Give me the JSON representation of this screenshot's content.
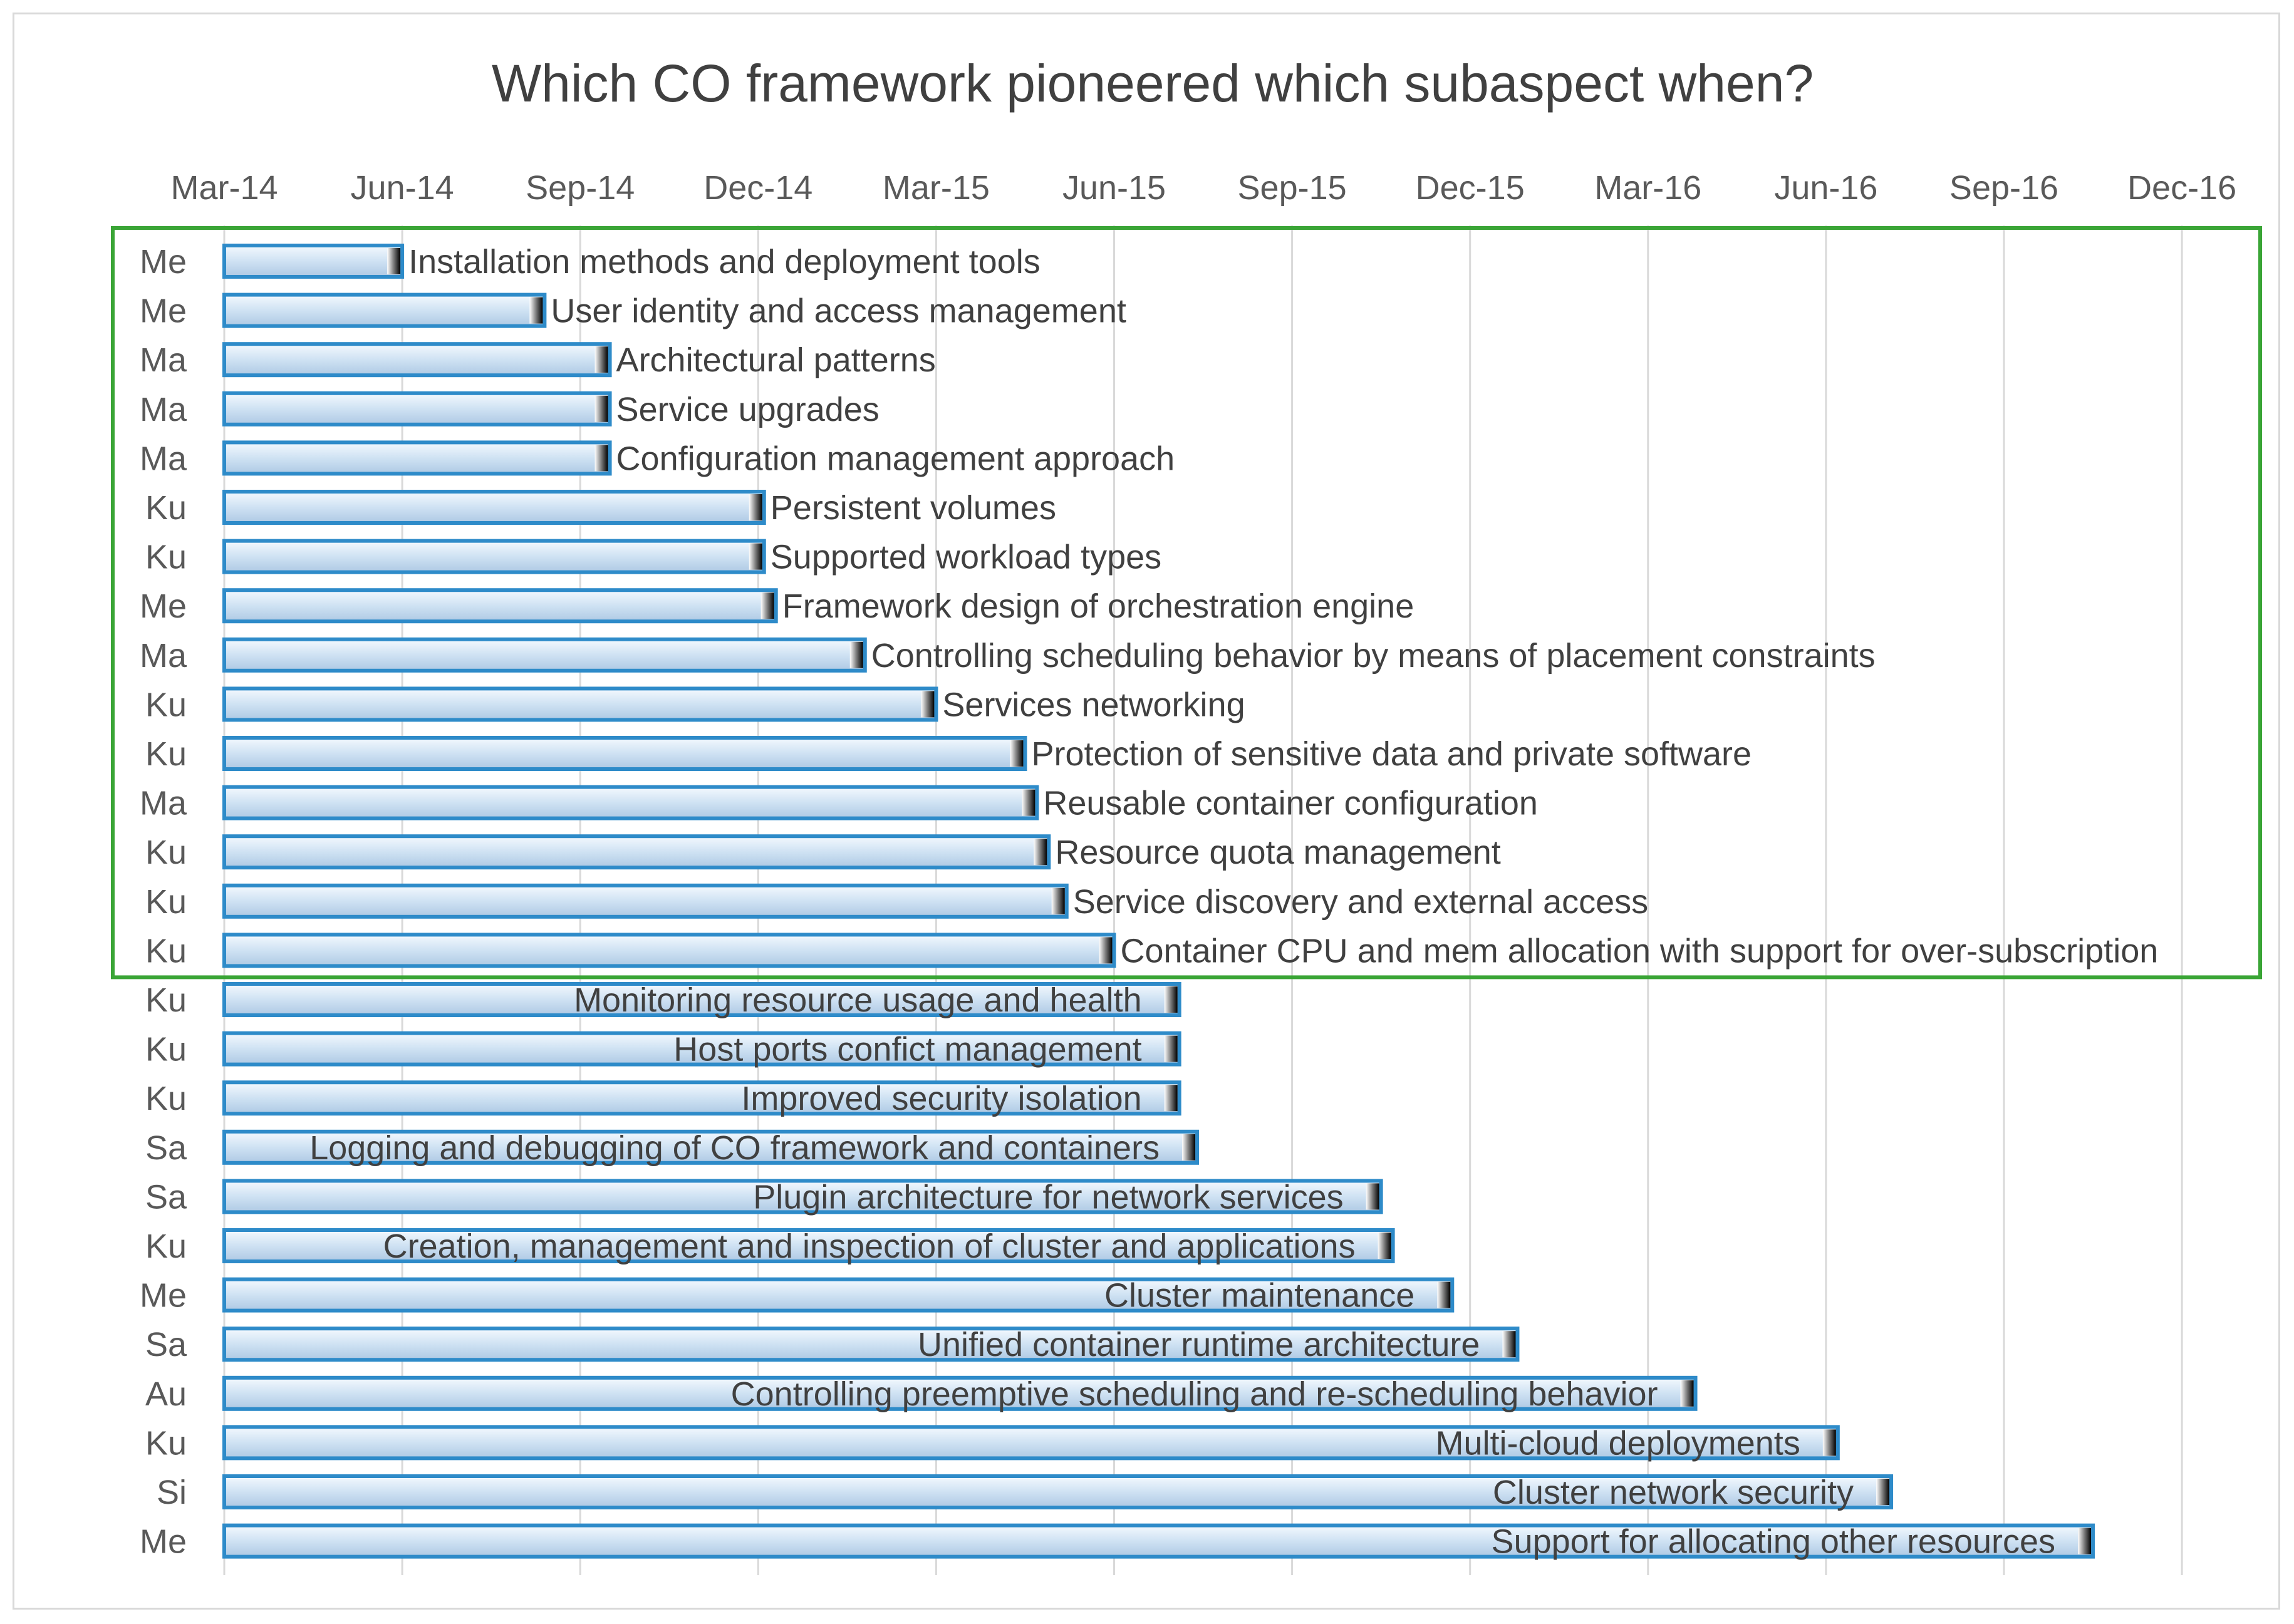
{
  "chart_data": {
    "type": "bar",
    "orientation": "horizontal",
    "title": "Which CO framework pioneered which subaspect when?",
    "x_axis": {
      "position": "top",
      "tick_labels": [
        "Mar-14",
        "Jun-14",
        "Sep-14",
        "Dec-14",
        "Mar-15",
        "Jun-15",
        "Sep-15",
        "Dec-15",
        "Mar-16",
        "Jun-16",
        "Sep-16",
        "Dec-16"
      ],
      "range_months": [
        0,
        33
      ],
      "grid": true
    },
    "highlight_box": {
      "from_row": 0,
      "to_row": 14,
      "color": "#3aa536"
    },
    "bar_color": "#cfe2f3",
    "bar_border_color": "#2e8bc9",
    "bars": [
      {
        "framework": "Me",
        "label": "Installation methods and deployment tools",
        "months": 3.0
      },
      {
        "framework": "Me",
        "label": "User identity and access management",
        "months": 5.4
      },
      {
        "framework": "Ma",
        "label": "Architectural patterns",
        "months": 6.5
      },
      {
        "framework": "Ma",
        "label": "Service upgrades",
        "months": 6.5
      },
      {
        "framework": "Ma",
        "label": "Configuration management approach",
        "months": 6.5
      },
      {
        "framework": "Ku",
        "label": "Persistent volumes",
        "months": 9.1
      },
      {
        "framework": "Ku",
        "label": "Supported workload types",
        "months": 9.1
      },
      {
        "framework": "Me",
        "label": "Framework design of orchestration engine",
        "months": 9.3
      },
      {
        "framework": "Ma",
        "label": "Controlling scheduling behavior by means of  placement constraints",
        "months": 10.8
      },
      {
        "framework": "Ku",
        "label": "Services networking",
        "months": 12.0
      },
      {
        "framework": "Ku",
        "label": "Protection of sensitive data and private software",
        "months": 13.5
      },
      {
        "framework": "Ma",
        "label": "Reusable container configuration",
        "months": 13.7
      },
      {
        "framework": "Ku",
        "label": "Resource quota management",
        "months": 13.9
      },
      {
        "framework": "Ku",
        "label": "Service discovery and external access",
        "months": 14.2
      },
      {
        "framework": "Ku",
        "label": "Container CPU and mem allocation with support for over-subscription",
        "months": 15.0
      },
      {
        "framework": "Ku",
        "label": "Monitoring resource usage and health",
        "months": 16.1
      },
      {
        "framework": "Ku",
        "label": "Host ports confict management",
        "months": 16.1
      },
      {
        "framework": "Ku",
        "label": "Improved security isolation",
        "months": 16.1
      },
      {
        "framework": "Sa",
        "label": "Logging and debugging of CO framework and containers",
        "months": 16.4
      },
      {
        "framework": "Sa",
        "label": "Plugin architecture for  network services",
        "months": 19.5
      },
      {
        "framework": "Ku",
        "label": "Creation, management and inspection of cluster and applications",
        "months": 19.7
      },
      {
        "framework": "Me",
        "label": "Cluster maintenance",
        "months": 20.7
      },
      {
        "framework": "Sa",
        "label": "Unified container runtime architecture",
        "months": 21.8
      },
      {
        "framework": "Au",
        "label": "Controlling preemptive scheduling and re-scheduling  behavior",
        "months": 24.8
      },
      {
        "framework": "Ku",
        "label": "Multi-cloud deployments",
        "months": 27.2
      },
      {
        "framework": "Si",
        "label": "Cluster network security",
        "months": 28.1
      },
      {
        "framework": "Me",
        "label": "Support for allocating other resources",
        "months": 31.5
      }
    ]
  }
}
